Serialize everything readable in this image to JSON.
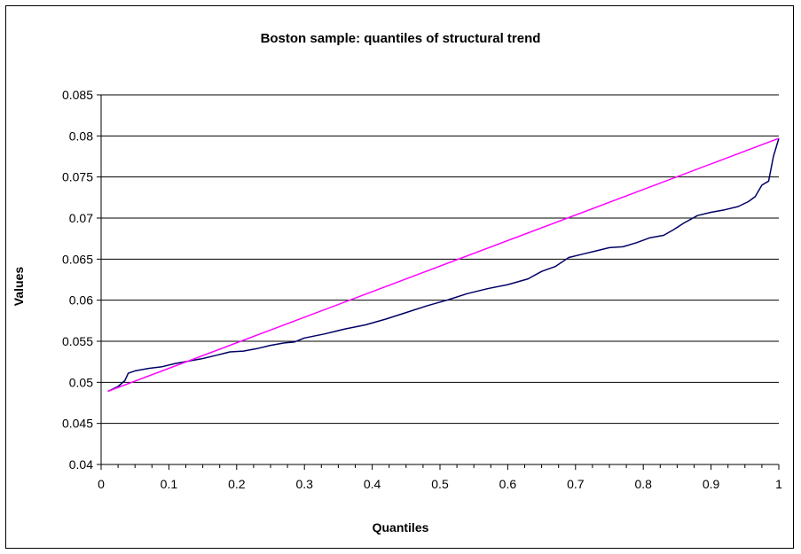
{
  "chart_data": {
    "type": "line",
    "title": "Boston sample: quantiles of structural trend",
    "xlabel": "Quantiles",
    "ylabel": "Values",
    "xlim": [
      0,
      1
    ],
    "ylim": [
      0.04,
      0.085
    ],
    "x_ticks": [
      "0",
      "0.1",
      "0.2",
      "0.3",
      "0.4",
      "0.5",
      "0.6",
      "0.7",
      "0.8",
      "0.9",
      "1"
    ],
    "y_ticks": [
      "0.04",
      "0.045",
      "0.05",
      "0.055",
      "0.06",
      "0.065",
      "0.07",
      "0.075",
      "0.08",
      "0.085"
    ],
    "grid": "horizontal",
    "legend": "none",
    "series": [
      {
        "color": "#000066",
        "x": [
          0.01,
          0.025,
          0.035,
          0.04,
          0.05,
          0.07,
          0.09,
          0.11,
          0.13,
          0.15,
          0.17,
          0.19,
          0.21,
          0.23,
          0.25,
          0.27,
          0.285,
          0.3,
          0.33,
          0.36,
          0.39,
          0.42,
          0.45,
          0.48,
          0.51,
          0.54,
          0.57,
          0.6,
          0.63,
          0.65,
          0.67,
          0.69,
          0.71,
          0.73,
          0.75,
          0.77,
          0.79,
          0.81,
          0.83,
          0.845,
          0.86,
          0.88,
          0.9,
          0.92,
          0.94,
          0.955,
          0.965,
          0.975,
          0.985,
          0.992,
          1.0
        ],
        "values": [
          0.0489,
          0.0495,
          0.0502,
          0.0511,
          0.0514,
          0.0517,
          0.0519,
          0.0523,
          0.0526,
          0.0529,
          0.0533,
          0.0537,
          0.0538,
          0.0541,
          0.0545,
          0.0548,
          0.0549,
          0.0554,
          0.0559,
          0.0565,
          0.057,
          0.0577,
          0.0585,
          0.0593,
          0.06,
          0.0608,
          0.0614,
          0.0619,
          0.0626,
          0.0635,
          0.0641,
          0.0652,
          0.0656,
          0.066,
          0.0664,
          0.0665,
          0.067,
          0.0676,
          0.0679,
          0.0686,
          0.0694,
          0.0703,
          0.0707,
          0.071,
          0.0714,
          0.072,
          0.0726,
          0.074,
          0.0745,
          0.0775,
          0.0797
        ]
      },
      {
        "color": "#ff00ff",
        "x": [
          0.01,
          1.0
        ],
        "values": [
          0.0489,
          0.0797
        ]
      }
    ]
  }
}
